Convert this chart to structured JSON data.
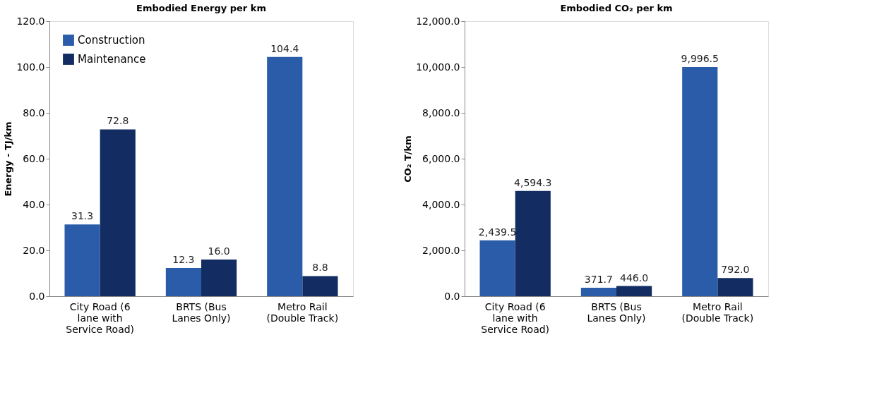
{
  "chart_data": [
    {
      "type": "bar",
      "title": "Embodied Energy per km",
      "ylabel": "Energy - TJ/km",
      "categories": [
        "City Road (6 lane with Service Road)",
        "BRTS (Bus Lanes Only)",
        "Metro Rail (Double Track)"
      ],
      "series": [
        {
          "name": "Construction",
          "color": "#2a5caa",
          "values": [
            31.3,
            12.3,
            104.4
          ],
          "value_labels": [
            "31.3",
            "12.3",
            "104.4"
          ]
        },
        {
          "name": "Maintenance",
          "color": "#132d62",
          "values": [
            72.8,
            16.0,
            8.8
          ],
          "value_labels": [
            "72.8",
            "16.0",
            "8.8"
          ]
        }
      ],
      "ylim": [
        0,
        120
      ],
      "yticks": [
        {
          "value": 0,
          "label": "0.0"
        },
        {
          "value": 20,
          "label": "20.0"
        },
        {
          "value": 40,
          "label": "40.0"
        },
        {
          "value": 60,
          "label": "60.0"
        },
        {
          "value": 80,
          "label": "80.0"
        },
        {
          "value": 100,
          "label": "100.0"
        },
        {
          "value": 120,
          "label": "120.0"
        }
      ],
      "grid": false,
      "legend": "top left"
    },
    {
      "type": "bar",
      "title": "Embodied CO₂ per km",
      "ylabel": "CO₂ T/km",
      "categories": [
        "City Road (6 lane with Service Road)",
        "BRTS (Bus Lanes Only)",
        "Metro Rail (Double Track)"
      ],
      "series": [
        {
          "name": "Construction",
          "color": "#2a5caa",
          "values": [
            2439.5,
            371.7,
            9996.5
          ],
          "value_labels": [
            "2,439.5",
            "371.7",
            "9,996.5"
          ]
        },
        {
          "name": "Maintenance",
          "color": "#132d62",
          "values": [
            4594.3,
            446.0,
            792.0
          ],
          "value_labels": [
            "4,594.3",
            "446.0",
            "792.0"
          ]
        }
      ],
      "ylim": [
        0,
        12000
      ],
      "yticks": [
        {
          "value": 0,
          "label": "0.0"
        },
        {
          "value": 2000,
          "label": "2,000.0"
        },
        {
          "value": 4000,
          "label": "4,000.0"
        },
        {
          "value": 6000,
          "label": "6,000.0"
        },
        {
          "value": 8000,
          "label": "8,000.0"
        },
        {
          "value": 10000,
          "label": "10,000.0"
        },
        {
          "value": 12000,
          "label": "12,000.0"
        }
      ],
      "grid": false,
      "legend": "top left"
    }
  ]
}
